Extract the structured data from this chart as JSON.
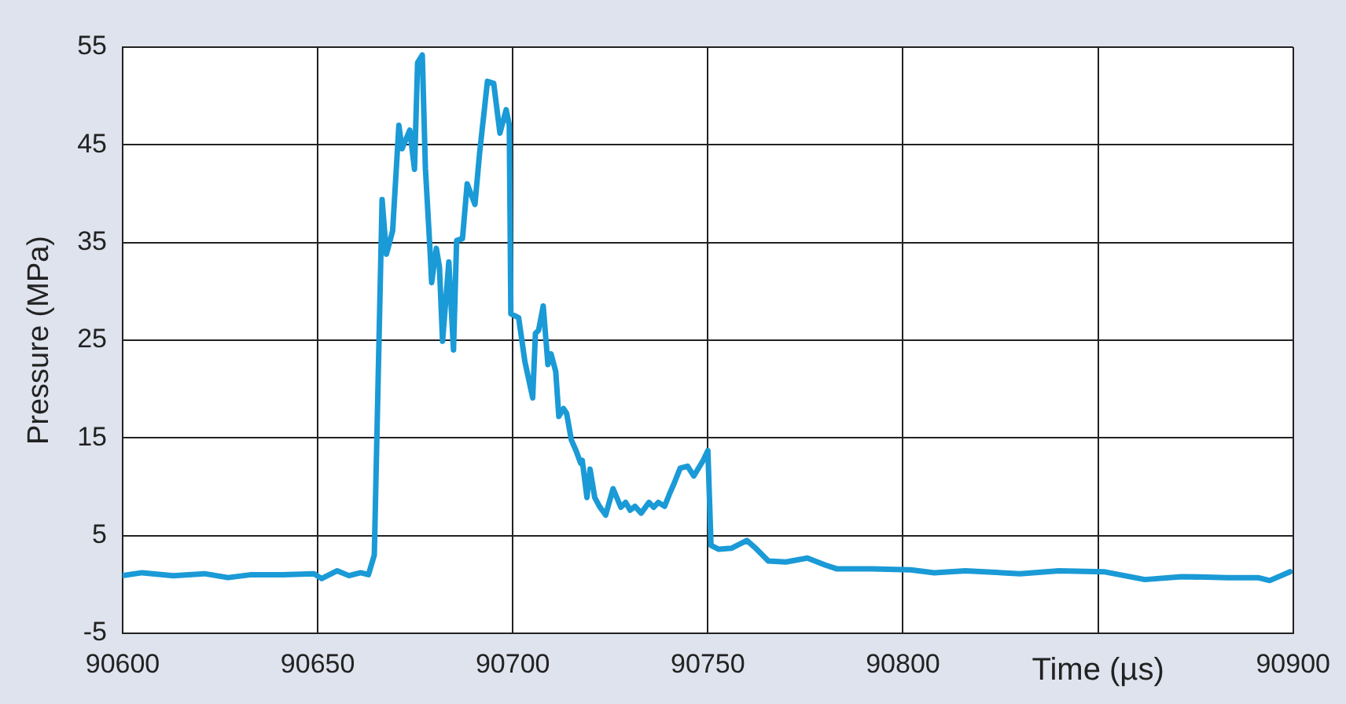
{
  "chart_data": {
    "type": "line",
    "xlabel": "Time (µs)",
    "ylabel": "Pressure (MPa)",
    "xlim": [
      90600,
      90900
    ],
    "xticks": [
      90600,
      90650,
      90700,
      90750,
      90800,
      {
        "value": 90850,
        "label": null
      },
      90900
    ],
    "ylim": [
      -5,
      55
    ],
    "yticks": [
      -5,
      5,
      15,
      25,
      35,
      45,
      55
    ],
    "grid": true,
    "marker": "none",
    "line_style": "solid",
    "series": [
      {
        "color": "#1a9ad6",
        "x": [
          90600,
          90605,
          90613,
          90621,
          90627,
          90633,
          90641,
          90649,
          90651,
          90655,
          90658,
          90661,
          90663,
          90664.5,
          90666.5,
          90667.6,
          90669.2,
          90670.8,
          90671.6,
          90673.6,
          90674.8,
          90675.6,
          90676.8,
          90677.6,
          90678.8,
          90679.2,
          90680.4,
          90681.2,
          90682,
          90683.6,
          90684.8,
          90685.6,
          90687.1,
          90688.3,
          90690.3,
          90691.5,
          90693.5,
          90695.1,
          90696.7,
          90698.3,
          90699.1,
          90699.5,
          90701.5,
          90703.1,
          90705.1,
          90705.8,
          90706.6,
          90707.8,
          90709,
          90709.8,
          90711,
          90711.8,
          90713,
          90713.8,
          90715,
          90716.2,
          90717.4,
          90717.8,
          90719,
          90719.8,
          90721,
          90722.2,
          90723.8,
          90725.7,
          90727.7,
          90728.9,
          90730.1,
          90731.3,
          90732.9,
          90734.9,
          90736.1,
          90737.3,
          90738.9,
          90740.1,
          90741.3,
          90742.9,
          90744.8,
          90746.4,
          90748.8,
          90750,
          90750.8,
          90752.8,
          90756,
          90760,
          90762,
          90765.5,
          90770,
          90775.5,
          90780,
          90783,
          90792,
          90802,
          90808,
          90816,
          90830,
          90840,
          90851.5,
          90862,
          90871.4,
          90883.3,
          90891,
          90894,
          90899.2
        ],
        "values": [
          0.9,
          1.2,
          0.9,
          1.1,
          0.7,
          1.0,
          1.0,
          1.1,
          0.6,
          1.4,
          0.9,
          1.2,
          1.0,
          3,
          39.4,
          33.8,
          36.2,
          47,
          44.6,
          46.5,
          42.5,
          53.4,
          54.2,
          42.6,
          34.1,
          30.9,
          34.4,
          32.5,
          24.9,
          33,
          24,
          35.2,
          35.4,
          41,
          38.9,
          44.2,
          51.5,
          51.3,
          46.2,
          48.6,
          47,
          27.7,
          27.3,
          22.8,
          19.1,
          25.7,
          26,
          28.5,
          22.5,
          23.6,
          21.8,
          17.2,
          18,
          17.5,
          14.8,
          13.7,
          12.4,
          12.7,
          8.9,
          11.8,
          8.9,
          8,
          7.1,
          9.8,
          7.9,
          8.4,
          7.6,
          8,
          7.3,
          8.4,
          7.9,
          8.4,
          8,
          9.2,
          10.3,
          11.9,
          12.1,
          11.1,
          12.7,
          13.7,
          4,
          3.6,
          3.7,
          4.5,
          3.8,
          2.4,
          2.3,
          2.7,
          2.0,
          1.6,
          1.6,
          1.5,
          1.2,
          1.4,
          1.1,
          1.4,
          1.3,
          0.5,
          0.8,
          0.7,
          0.7,
          0.4,
          1.3
        ]
      }
    ]
  }
}
